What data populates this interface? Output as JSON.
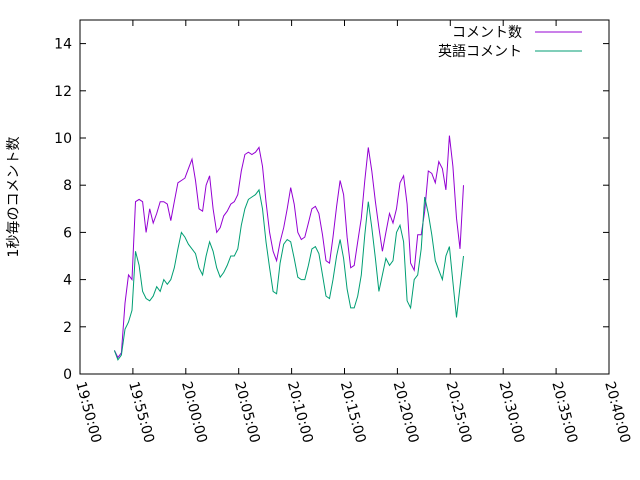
{
  "chart_data": {
    "type": "line",
    "title": "",
    "xlabel": "",
    "ylabel": "1秒毎のコメント数",
    "x_tick_labels": [
      "19:50:00",
      "19:55:00",
      "20:00:00",
      "20:05:00",
      "20:10:00",
      "20:15:00",
      "20:20:00",
      "20:25:00",
      "20:30:00",
      "20:35:00",
      "20:40:00"
    ],
    "y_tick_labels": [
      "0",
      "2",
      "4",
      "6",
      "8",
      "10",
      "12",
      "14"
    ],
    "xlim": [
      "19:50:00",
      "20:40:00"
    ],
    "ylim": [
      0,
      15
    ],
    "grid": false,
    "legend_position": "top-right",
    "x_start": "19:53:15",
    "x_step_seconds": 20,
    "series": [
      {
        "name": "コメント数",
        "color": "#9400d3",
        "values": [
          1.0,
          0.7,
          0.9,
          3.0,
          4.2,
          4.0,
          7.3,
          7.4,
          7.3,
          6.0,
          7.0,
          6.4,
          6.8,
          7.3,
          7.3,
          7.2,
          6.5,
          7.3,
          8.1,
          8.2,
          8.3,
          8.7,
          9.1,
          8.2,
          7.0,
          6.9,
          8.0,
          8.4,
          7.0,
          6.0,
          6.2,
          6.7,
          6.9,
          7.2,
          7.3,
          7.6,
          8.6,
          9.3,
          9.4,
          9.3,
          9.4,
          9.6,
          8.8,
          7.3,
          6.0,
          5.2,
          4.8,
          5.6,
          6.2,
          7.0,
          7.9,
          7.2,
          6.0,
          5.7,
          5.8,
          6.4,
          7.0,
          7.1,
          6.8,
          5.9,
          4.8,
          4.7,
          5.8,
          7.1,
          8.2,
          7.6,
          5.8,
          4.5,
          4.6,
          5.6,
          6.6,
          8.2,
          9.6,
          8.6,
          7.3,
          6.2,
          5.2,
          6.0,
          6.8,
          6.4,
          7.0,
          8.1,
          8.4,
          7.2,
          4.7,
          4.4,
          5.9,
          5.9,
          6.9,
          8.6,
          8.5,
          8.1,
          9.0,
          8.7,
          7.8,
          10.1,
          8.8,
          6.6,
          5.3,
          8.0
        ],
        "legend_label": "コメント数"
      },
      {
        "name": "英語コメント",
        "color": "#009e73",
        "values": [
          1.0,
          0.6,
          0.8,
          1.9,
          2.2,
          2.7,
          5.2,
          4.6,
          3.5,
          3.2,
          3.1,
          3.3,
          3.7,
          3.5,
          4.0,
          3.8,
          4.0,
          4.5,
          5.3,
          6.0,
          5.8,
          5.5,
          5.3,
          5.1,
          4.5,
          4.2,
          5.0,
          5.6,
          5.2,
          4.5,
          4.1,
          4.3,
          4.6,
          5.0,
          5.0,
          5.3,
          6.3,
          7.0,
          7.4,
          7.5,
          7.6,
          7.8,
          7.0,
          5.6,
          4.5,
          3.5,
          3.4,
          4.7,
          5.5,
          5.7,
          5.6,
          4.9,
          4.1,
          4.0,
          4.0,
          4.6,
          5.3,
          5.4,
          5.1,
          4.2,
          3.3,
          3.2,
          4.0,
          5.0,
          5.7,
          4.9,
          3.6,
          2.8,
          2.8,
          3.3,
          4.2,
          5.9,
          7.3,
          6.2,
          4.9,
          3.5,
          4.2,
          4.9,
          4.6,
          4.8,
          6.0,
          6.3,
          5.6,
          3.1,
          2.8,
          4.0,
          4.2,
          5.3,
          7.5,
          6.8,
          5.9,
          4.8,
          4.4,
          4.0,
          5.0,
          5.4,
          3.9,
          2.4,
          3.7,
          5.0
        ],
        "legend_label": "英語コメント"
      }
    ]
  }
}
